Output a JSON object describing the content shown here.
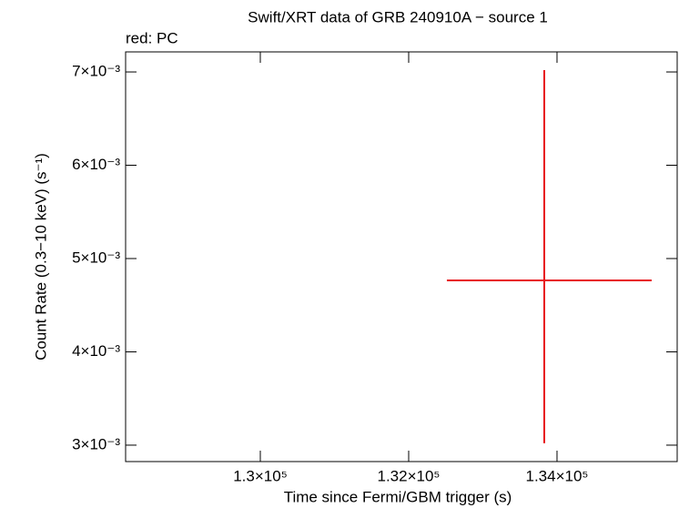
{
  "chart_data": {
    "type": "errorbar",
    "title": "Swift/XRT data of GRB 240910A − source 1",
    "subtitle": "red: PC",
    "x_label": "Time since Fermi/GBM trigger (s)",
    "y_label": "Count Rate (0.3−10 keV) (s⁻¹)",
    "xlim": [
      128184,
      135620
    ],
    "ylim": [
      0.002824,
      0.007215
    ],
    "xticks": [
      {
        "value": 130000,
        "label": "1.3×10⁵"
      },
      {
        "value": 132000,
        "label": "1.32×10⁵"
      },
      {
        "value": 134000,
        "label": "1.34×10⁵"
      }
    ],
    "yticks": [
      {
        "value": 0.003,
        "label": "3×10⁻³"
      },
      {
        "value": 0.004,
        "label": "4×10⁻³"
      },
      {
        "value": 0.005,
        "label": "5×10⁻³"
      },
      {
        "value": 0.006,
        "label": "6×10⁻³"
      },
      {
        "value": 0.007,
        "label": "7×10⁻³"
      }
    ],
    "series": [
      {
        "color": "#e8141b",
        "x": [
          133828
        ],
        "values": [
          0.004766
        ],
        "xerr_minus": [
          1313
        ],
        "xerr_plus": [
          1448
        ],
        "yerr_minus": [
          0.001746
        ],
        "yerr_plus": [
          0.002254
        ]
      }
    ]
  }
}
